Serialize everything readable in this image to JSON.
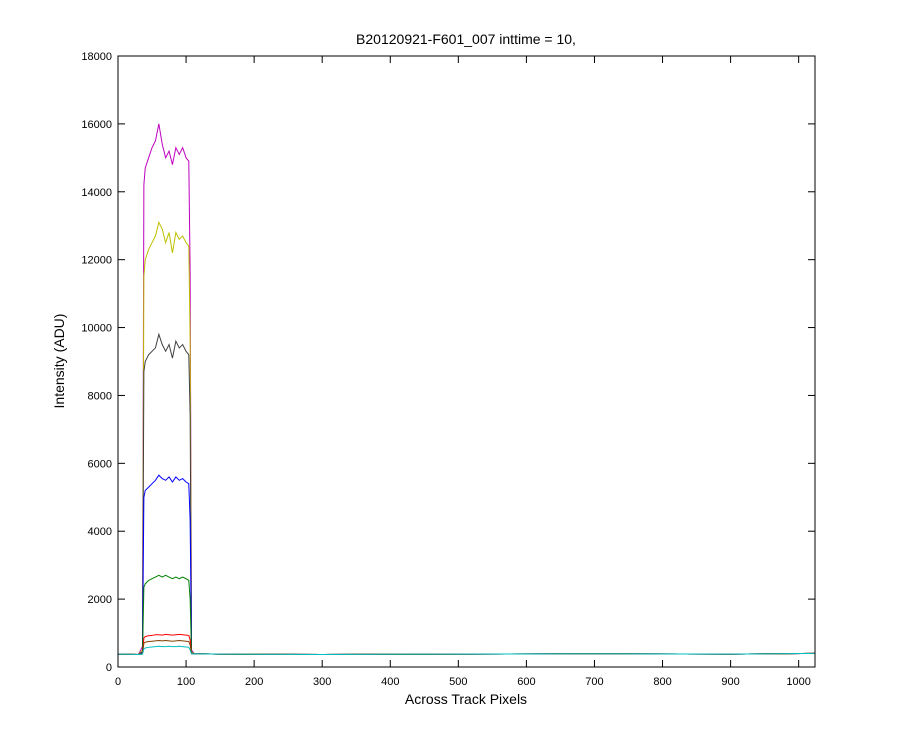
{
  "chart_data": {
    "type": "line",
    "title": "B20120921-F601_007 inttime = 10,",
    "x_label": "Across Track Pixels",
    "y_label": "Intensity (ADU)",
    "xlim": [
      0,
      1024
    ],
    "ylim": [
      0,
      18000
    ],
    "xticks": [
      0,
      100,
      200,
      300,
      400,
      500,
      600,
      700,
      800,
      900,
      1000
    ],
    "yticks": [
      0,
      2000,
      4000,
      6000,
      8000,
      10000,
      12000,
      14000,
      16000,
      18000
    ],
    "grid": false,
    "x": [
      0,
      30,
      36,
      38,
      40,
      45,
      50,
      55,
      60,
      65,
      70,
      75,
      80,
      85,
      90,
      95,
      100,
      104,
      106,
      108,
      112,
      150,
      300,
      500,
      700,
      900,
      1024
    ],
    "series": [
      {
        "color": "#bf00bf",
        "values": [
          380,
          370,
          600,
          14200,
          14700,
          15000,
          15300,
          15500,
          16000,
          15400,
          15000,
          15200,
          14800,
          15300,
          15100,
          15300,
          15000,
          14900,
          11600,
          500,
          390,
          380,
          370,
          380,
          390,
          380,
          400
        ]
      },
      {
        "color": "#bfbf00",
        "values": [
          380,
          370,
          500,
          11500,
          12000,
          12300,
          12500,
          12700,
          13100,
          12900,
          12500,
          12800,
          12200,
          12800,
          12600,
          12700,
          12500,
          12400,
          9600,
          450,
          390,
          380,
          370,
          380,
          390,
          380,
          400
        ]
      },
      {
        "color": "#404040",
        "values": [
          380,
          370,
          450,
          8700,
          9000,
          9200,
          9300,
          9400,
          9800,
          9500,
          9300,
          9500,
          9100,
          9600,
          9400,
          9500,
          9300,
          9200,
          7400,
          420,
          390,
          380,
          370,
          380,
          390,
          380,
          400
        ]
      },
      {
        "color": "#0000ff",
        "values": [
          380,
          370,
          420,
          5000,
          5200,
          5300,
          5400,
          5500,
          5650,
          5550,
          5500,
          5600,
          5450,
          5600,
          5500,
          5550,
          5450,
          5400,
          4300,
          400,
          390,
          380,
          370,
          380,
          390,
          380,
          400
        ]
      },
      {
        "color": "#008000",
        "values": [
          380,
          370,
          400,
          2350,
          2450,
          2550,
          2600,
          2650,
          2700,
          2650,
          2700,
          2650,
          2600,
          2650,
          2600,
          2650,
          2600,
          2550,
          2000,
          400,
          390,
          380,
          370,
          380,
          390,
          380,
          400
        ]
      },
      {
        "color": "#ff0000",
        "values": [
          380,
          370,
          390,
          850,
          900,
          920,
          930,
          950,
          950,
          940,
          960,
          950,
          940,
          950,
          960,
          950,
          940,
          930,
          800,
          390,
          390,
          380,
          370,
          380,
          390,
          380,
          400
        ]
      },
      {
        "color": "#804000",
        "values": [
          380,
          370,
          385,
          700,
          730,
          750,
          760,
          770,
          780,
          770,
          780,
          770,
          760,
          770,
          780,
          770,
          760,
          750,
          650,
          390,
          390,
          380,
          370,
          380,
          390,
          380,
          400
        ]
      },
      {
        "color": "#00bfbf",
        "values": [
          380,
          370,
          380,
          540,
          560,
          580,
          590,
          600,
          610,
          600,
          600,
          610,
          600,
          600,
          610,
          600,
          590,
          580,
          500,
          385,
          390,
          380,
          370,
          380,
          390,
          380,
          400
        ]
      }
    ]
  }
}
